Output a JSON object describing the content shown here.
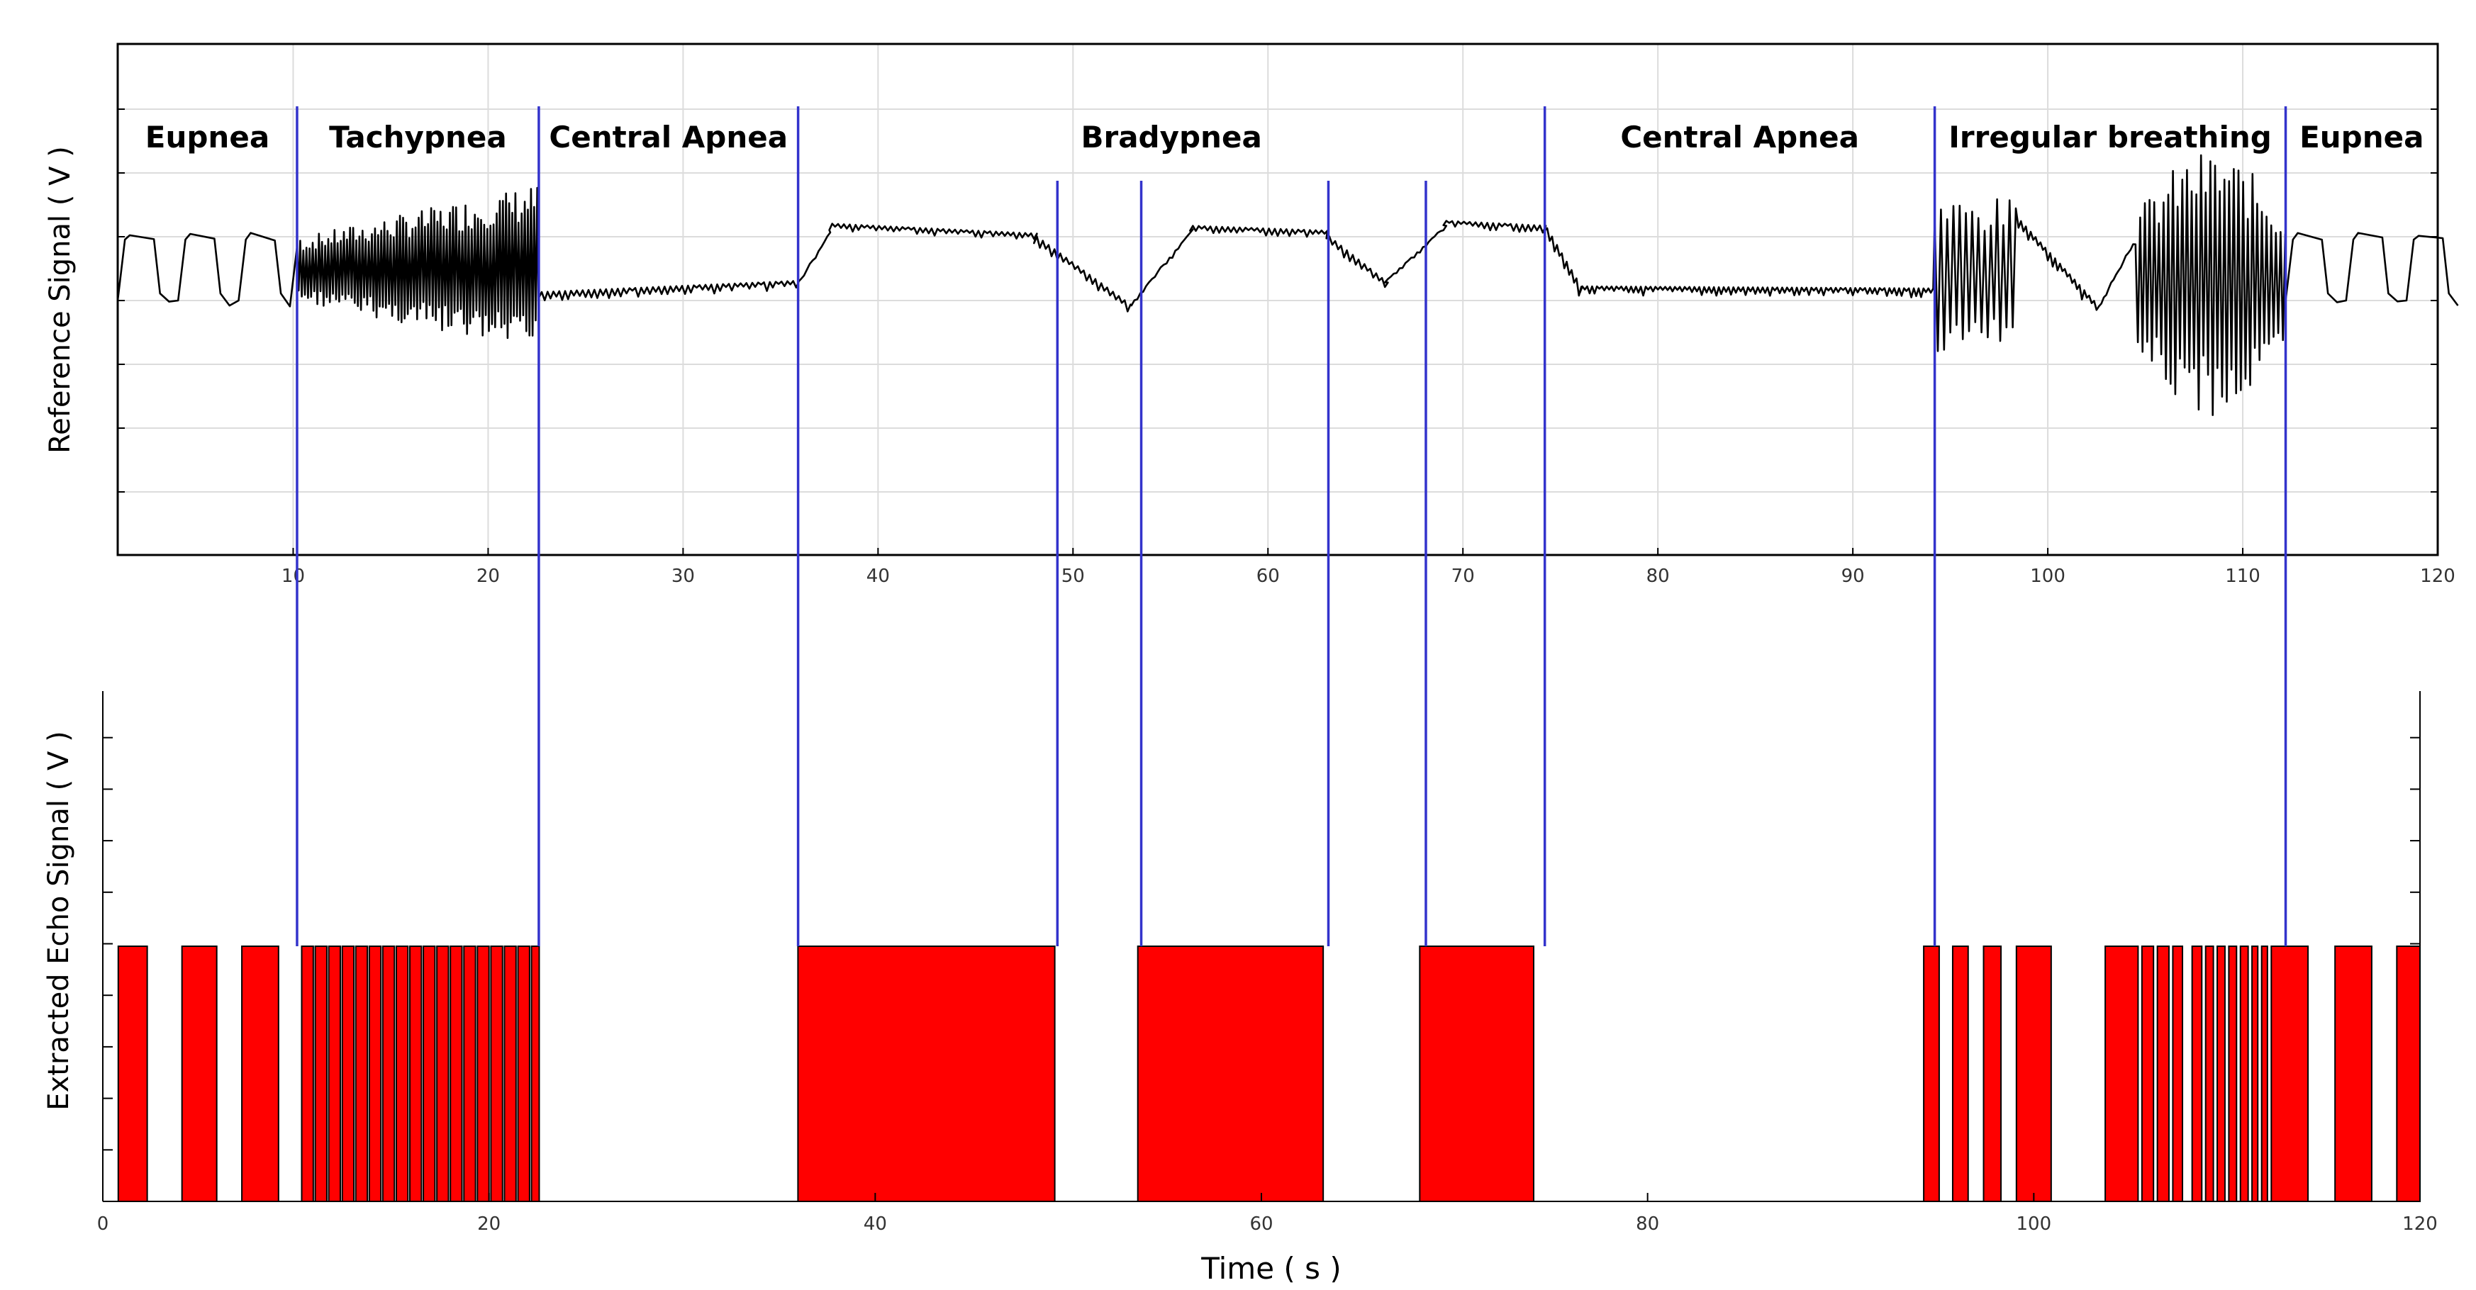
{
  "chart_data": [
    {
      "type": "line",
      "ylabel": "Reference Signal ( V )",
      "xlim": [
        1,
        120
      ],
      "x_ticks": [
        10,
        20,
        30,
        40,
        50,
        60,
        70,
        80,
        90,
        100,
        110,
        120
      ],
      "grid": true,
      "y_ticks_labeled": false,
      "phases": [
        {
          "label": "Eupnea",
          "start": 1,
          "end": 10.2
        },
        {
          "label": "Tachypnea",
          "start": 10.2,
          "end": 22.6
        },
        {
          "label": "Central Apnea",
          "start": 22.6,
          "end": 35.9
        },
        {
          "label": "Bradypnea",
          "start": 35.9,
          "end": 74.2
        },
        {
          "label": "Central Apnea",
          "start": 74.2,
          "end": 94.2
        },
        {
          "label": "Irregular breathing",
          "start": 94.2,
          "end": 112.2
        },
        {
          "label": "Eupnea",
          "start": 112.2,
          "end": 120
        }
      ],
      "phase_boundaries": [
        10.2,
        22.6,
        35.9,
        49.2,
        53.5,
        63.1,
        68.1,
        74.2,
        94.2,
        112.2
      ],
      "colors": {
        "signal": "#000000",
        "boundary": "#3333cc"
      }
    },
    {
      "type": "bar",
      "ylabel": "Extracted Echo Signal ( V )",
      "xlabel": "Time ( s )",
      "xlim": [
        0,
        120
      ],
      "x_ticks": [
        0,
        20,
        40,
        60,
        80,
        100,
        120
      ],
      "y_ticks_labeled": false,
      "pulse_level": 0.5,
      "pulses": [
        [
          0.8,
          2.3
        ],
        [
          4.1,
          5.9
        ],
        [
          7.2,
          9.1
        ],
        [
          10.3,
          10.9
        ],
        [
          11.0,
          11.6
        ],
        [
          11.7,
          12.3
        ],
        [
          12.4,
          13.0
        ],
        [
          13.1,
          13.7
        ],
        [
          13.8,
          14.4
        ],
        [
          14.5,
          15.1
        ],
        [
          15.2,
          15.8
        ],
        [
          15.9,
          16.5
        ],
        [
          16.6,
          17.2
        ],
        [
          17.3,
          17.9
        ],
        [
          18.0,
          18.6
        ],
        [
          18.7,
          19.3
        ],
        [
          19.4,
          20.0
        ],
        [
          20.1,
          20.7
        ],
        [
          20.8,
          21.4
        ],
        [
          21.5,
          22.1
        ],
        [
          22.2,
          22.6
        ],
        [
          36.0,
          49.3
        ],
        [
          53.6,
          63.2
        ],
        [
          68.2,
          74.1
        ],
        [
          94.3,
          95.1
        ],
        [
          95.8,
          96.6
        ],
        [
          97.4,
          98.3
        ],
        [
          99.1,
          100.9
        ],
        [
          103.7,
          105.4
        ],
        [
          105.6,
          106.2
        ],
        [
          106.4,
          107.0
        ],
        [
          107.2,
          107.7
        ],
        [
          108.2,
          108.7
        ],
        [
          108.9,
          109.3
        ],
        [
          109.5,
          109.9
        ],
        [
          110.1,
          110.5
        ],
        [
          110.7,
          111.1
        ],
        [
          111.3,
          111.6
        ],
        [
          111.8,
          112.1
        ],
        [
          112.3,
          114.2
        ],
        [
          115.6,
          117.5
        ],
        [
          118.8,
          120.0
        ]
      ],
      "colors": {
        "bar": "#ff0000",
        "boundary": "#3333cc"
      }
    }
  ]
}
